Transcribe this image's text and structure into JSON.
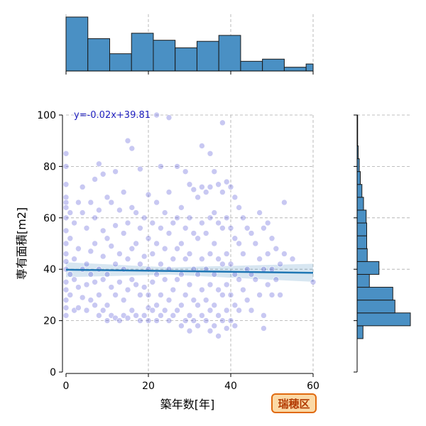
{
  "chart_data": {
    "type": "scatter",
    "xlabel": "築年数[年]",
    "ylabel": "専有面積[m2]",
    "xlim": [
      0,
      60
    ],
    "ylim": [
      0,
      100
    ],
    "x_ticks": [
      0,
      20,
      40,
      60
    ],
    "y_ticks": [
      0,
      20,
      40,
      60,
      80,
      100
    ],
    "grid": true,
    "regression": {
      "equation_label": "y=-0.02x+39.81",
      "slope": -0.02,
      "intercept": 39.81,
      "color": "#1f77b4"
    },
    "point_color": "#3a3ad0",
    "hist_color": "#4a90c4",
    "points": [
      [
        0,
        85
      ],
      [
        0,
        80
      ],
      [
        0,
        73
      ],
      [
        0,
        68
      ],
      [
        0,
        66
      ],
      [
        0,
        64
      ],
      [
        0,
        60
      ],
      [
        0,
        55
      ],
      [
        0,
        50
      ],
      [
        0,
        46
      ],
      [
        0,
        43
      ],
      [
        0,
        40
      ],
      [
        0,
        35
      ],
      [
        0,
        32
      ],
      [
        0,
        28
      ],
      [
        0,
        25
      ],
      [
        0,
        22
      ],
      [
        1,
        62
      ],
      [
        1,
        52
      ],
      [
        1,
        38
      ],
      [
        1,
        30
      ],
      [
        2,
        58
      ],
      [
        2,
        44
      ],
      [
        2,
        36
      ],
      [
        2,
        24
      ],
      [
        3,
        66
      ],
      [
        3,
        48
      ],
      [
        3,
        33
      ],
      [
        3,
        25
      ],
      [
        4,
        72
      ],
      [
        4,
        62
      ],
      [
        4,
        40
      ],
      [
        4,
        29
      ],
      [
        5,
        56
      ],
      [
        5,
        42
      ],
      [
        5,
        34
      ],
      [
        5,
        24
      ],
      [
        6,
        66
      ],
      [
        6,
        47
      ],
      [
        6,
        38
      ],
      [
        6,
        28
      ],
      [
        7,
        75
      ],
      [
        7,
        60
      ],
      [
        7,
        50
      ],
      [
        7,
        35
      ],
      [
        7,
        26
      ],
      [
        8,
        81
      ],
      [
        8,
        63
      ],
      [
        8,
        40
      ],
      [
        8,
        30
      ],
      [
        8,
        22
      ],
      [
        9,
        77
      ],
      [
        9,
        55
      ],
      [
        9,
        45
      ],
      [
        9,
        36
      ],
      [
        9,
        24
      ],
      [
        10,
        68
      ],
      [
        10,
        52
      ],
      [
        10,
        38
      ],
      [
        10,
        26
      ],
      [
        10,
        20
      ],
      [
        11,
        66
      ],
      [
        11,
        49
      ],
      [
        11,
        33
      ],
      [
        11,
        22
      ],
      [
        12,
        78
      ],
      [
        12,
        57
      ],
      [
        12,
        42
      ],
      [
        12,
        30
      ],
      [
        12,
        21
      ],
      [
        13,
        63
      ],
      [
        13,
        46
      ],
      [
        13,
        35
      ],
      [
        13,
        20
      ],
      [
        14,
        70
      ],
      [
        14,
        54
      ],
      [
        14,
        40
      ],
      [
        14,
        28
      ],
      [
        14,
        22
      ],
      [
        15,
        90
      ],
      [
        15,
        58
      ],
      [
        15,
        44
      ],
      [
        15,
        32
      ],
      [
        15,
        21
      ],
      [
        16,
        87
      ],
      [
        16,
        64
      ],
      [
        16,
        48
      ],
      [
        16,
        36
      ],
      [
        16,
        24
      ],
      [
        17,
        62
      ],
      [
        17,
        50
      ],
      [
        17,
        34
      ],
      [
        17,
        22
      ],
      [
        18,
        79
      ],
      [
        18,
        56
      ],
      [
        18,
        42
      ],
      [
        18,
        30
      ],
      [
        18,
        20
      ],
      [
        19,
        60
      ],
      [
        19,
        45
      ],
      [
        19,
        33
      ],
      [
        19,
        22
      ],
      [
        20,
        69
      ],
      [
        20,
        52
      ],
      [
        20,
        40
      ],
      [
        20,
        30
      ],
      [
        20,
        25
      ],
      [
        20,
        20
      ],
      [
        21,
        58
      ],
      [
        21,
        46
      ],
      [
        21,
        35
      ],
      [
        21,
        24
      ],
      [
        22,
        100
      ],
      [
        22,
        66
      ],
      [
        22,
        50
      ],
      [
        22,
        38
      ],
      [
        22,
        26
      ],
      [
        22,
        20
      ],
      [
        23,
        80
      ],
      [
        23,
        56
      ],
      [
        23,
        42
      ],
      [
        23,
        30
      ],
      [
        23,
        22
      ],
      [
        24,
        62
      ],
      [
        24,
        48
      ],
      [
        24,
        36
      ],
      [
        24,
        24
      ],
      [
        25,
        99
      ],
      [
        25,
        70
      ],
      [
        25,
        54
      ],
      [
        25,
        40
      ],
      [
        25,
        28
      ],
      [
        25,
        20
      ],
      [
        26,
        58
      ],
      [
        26,
        44
      ],
      [
        26,
        32
      ],
      [
        26,
        22
      ],
      [
        27,
        80
      ],
      [
        27,
        60
      ],
      [
        27,
        48
      ],
      [
        27,
        36
      ],
      [
        27,
        24
      ],
      [
        28,
        64
      ],
      [
        28,
        50
      ],
      [
        28,
        38
      ],
      [
        28,
        26
      ],
      [
        28,
        18
      ],
      [
        29,
        78
      ],
      [
        29,
        56
      ],
      [
        29,
        44
      ],
      [
        29,
        30
      ],
      [
        29,
        20
      ],
      [
        30,
        73
      ],
      [
        30,
        60
      ],
      [
        30,
        46
      ],
      [
        30,
        34
      ],
      [
        30,
        22
      ],
      [
        30,
        16
      ],
      [
        31,
        71
      ],
      [
        31,
        54
      ],
      [
        31,
        40
      ],
      [
        31,
        28
      ],
      [
        31,
        20
      ],
      [
        32,
        68
      ],
      [
        32,
        52
      ],
      [
        32,
        38
      ],
      [
        32,
        26
      ],
      [
        32,
        18
      ],
      [
        33,
        88
      ],
      [
        33,
        72
      ],
      [
        33,
        58
      ],
      [
        33,
        44
      ],
      [
        33,
        32
      ],
      [
        33,
        22
      ],
      [
        34,
        70
      ],
      [
        34,
        54
      ],
      [
        34,
        40
      ],
      [
        34,
        28
      ],
      [
        34,
        20
      ],
      [
        35,
        85
      ],
      [
        35,
        72
      ],
      [
        35,
        60
      ],
      [
        35,
        46
      ],
      [
        35,
        34
      ],
      [
        35,
        24
      ],
      [
        35,
        16
      ],
      [
        36,
        78
      ],
      [
        36,
        62
      ],
      [
        36,
        50
      ],
      [
        36,
        38
      ],
      [
        36,
        26
      ],
      [
        36,
        18
      ],
      [
        37,
        73
      ],
      [
        37,
        58
      ],
      [
        37,
        44
      ],
      [
        37,
        32
      ],
      [
        37,
        22
      ],
      [
        37,
        14
      ],
      [
        38,
        97
      ],
      [
        38,
        70
      ],
      [
        38,
        56
      ],
      [
        38,
        42
      ],
      [
        38,
        30
      ],
      [
        38,
        20
      ],
      [
        39,
        74
      ],
      [
        39,
        60
      ],
      [
        39,
        46
      ],
      [
        39,
        34
      ],
      [
        39,
        24
      ],
      [
        39,
        17
      ],
      [
        40,
        72
      ],
      [
        40,
        56
      ],
      [
        40,
        42
      ],
      [
        40,
        30
      ],
      [
        40,
        20
      ],
      [
        41,
        68
      ],
      [
        41,
        52
      ],
      [
        41,
        38
      ],
      [
        41,
        26
      ],
      [
        41,
        18
      ],
      [
        42,
        64
      ],
      [
        42,
        50
      ],
      [
        42,
        36
      ],
      [
        42,
        24
      ],
      [
        43,
        60
      ],
      [
        43,
        46
      ],
      [
        43,
        32
      ],
      [
        44,
        56
      ],
      [
        44,
        40
      ],
      [
        44,
        28
      ],
      [
        45,
        54
      ],
      [
        45,
        38
      ],
      [
        45,
        24
      ],
      [
        46,
        50
      ],
      [
        46,
        36
      ],
      [
        47,
        62
      ],
      [
        47,
        44
      ],
      [
        47,
        30
      ],
      [
        48,
        56
      ],
      [
        48,
        40
      ],
      [
        48,
        22
      ],
      [
        48,
        17
      ],
      [
        49,
        58
      ],
      [
        49,
        46
      ],
      [
        49,
        34
      ],
      [
        50,
        52
      ],
      [
        50,
        40
      ],
      [
        50,
        30
      ],
      [
        51,
        48
      ],
      [
        51,
        36
      ],
      [
        52,
        42
      ],
      [
        52,
        30
      ],
      [
        53,
        66
      ],
      [
        53,
        46
      ],
      [
        55,
        44
      ],
      [
        60,
        35
      ]
    ],
    "x_histogram": {
      "bins": [
        0,
        5.3,
        10.6,
        15.9,
        21.2,
        26.5,
        31.8,
        37.1,
        42.4,
        47.7,
        53,
        58.3,
        60
      ],
      "heights": [
        1.0,
        0.6,
        0.32,
        0.7,
        0.57,
        0.43,
        0.55,
        0.66,
        0.18,
        0.22,
        0.07,
        0.13
      ]
    },
    "y_histogram": {
      "bins": [
        13,
        18,
        23,
        28,
        33,
        38,
        43,
        48,
        53,
        58,
        63,
        68,
        73,
        78,
        83,
        88,
        100
      ],
      "widths": [
        0.11,
        1.0,
        0.71,
        0.67,
        0.23,
        0.41,
        0.19,
        0.18,
        0.18,
        0.17,
        0.12,
        0.09,
        0.06,
        0.04,
        0.02,
        0.01
      ]
    },
    "badge_label": "瑞穂区",
    "badge_colors": {
      "fill": "#fbd9a6",
      "stroke": "#e06a10",
      "text": "#b23a00"
    }
  }
}
